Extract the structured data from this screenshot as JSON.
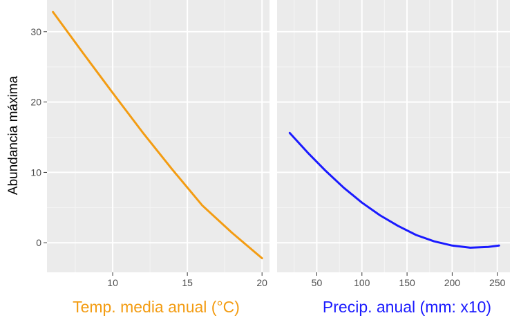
{
  "ylabel": "Abundancia máxima",
  "chart_data": [
    {
      "type": "line",
      "xlabel": "Temp. media anual (°C)",
      "xlim": [
        5.6,
        20.5
      ],
      "ylim": [
        -4.2,
        34.5
      ],
      "xticks": [
        10,
        15,
        20
      ],
      "yticks": [
        0,
        10,
        20,
        30
      ],
      "grid": true,
      "color": "#f39c12",
      "series": [
        {
          "x": [
            6,
            8,
            10,
            12,
            14,
            16,
            18,
            20
          ],
          "y": [
            32.8,
            27.0,
            21.3,
            15.7,
            10.4,
            5.3,
            1.4,
            -2.2
          ]
        }
      ]
    },
    {
      "type": "line",
      "xlabel": "Precip. anual (mm: x10)",
      "xlim": [
        6,
        264
      ],
      "ylim": [
        -4.2,
        34.5
      ],
      "xticks": [
        50,
        100,
        150,
        200,
        250
      ],
      "yticks": [
        0,
        10,
        20,
        30
      ],
      "grid": true,
      "color": "#1a1aff",
      "series": [
        {
          "x": [
            20,
            40,
            60,
            80,
            100,
            120,
            140,
            160,
            180,
            200,
            220,
            240,
            252
          ],
          "y": [
            15.6,
            12.8,
            10.2,
            7.8,
            5.7,
            3.9,
            2.4,
            1.1,
            0.2,
            -0.4,
            -0.7,
            -0.6,
            -0.4
          ]
        }
      ]
    }
  ]
}
